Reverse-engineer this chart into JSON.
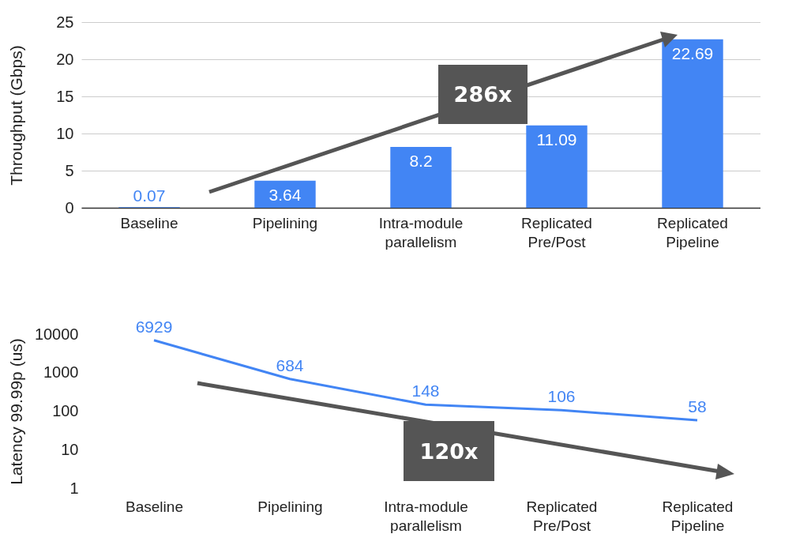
{
  "chart_data": [
    {
      "type": "bar",
      "ylabel": "Throughput (Gbps)",
      "categories": [
        "Baseline",
        "Pipelining",
        "Intra-module parallelism",
        "Replicated Pre/Post",
        "Replicated Pipeline"
      ],
      "values": [
        0.07,
        3.64,
        8.2,
        11.09,
        22.69
      ],
      "color": "#4285f4",
      "ylim": [
        0,
        25
      ],
      "yticks": [
        0,
        5,
        10,
        15,
        20,
        25
      ],
      "grid": "y",
      "data_labels": true,
      "annotations": [
        "286x"
      ]
    },
    {
      "type": "line",
      "ylabel": "Latency 99.99p (us)",
      "categories": [
        "Baseline",
        "Pipelining",
        "Intra-module parallelism",
        "Replicated Pre/Post",
        "Replicated Pipeline"
      ],
      "values": [
        6929,
        684,
        148,
        106,
        58
      ],
      "color": "#4285f4",
      "log": true,
      "ylim": [
        1,
        10000
      ],
      "yticks": [
        1,
        10,
        100,
        1000,
        10000
      ],
      "grid": false,
      "data_labels": true,
      "marker": "none",
      "annotations": [
        "120x"
      ]
    }
  ]
}
